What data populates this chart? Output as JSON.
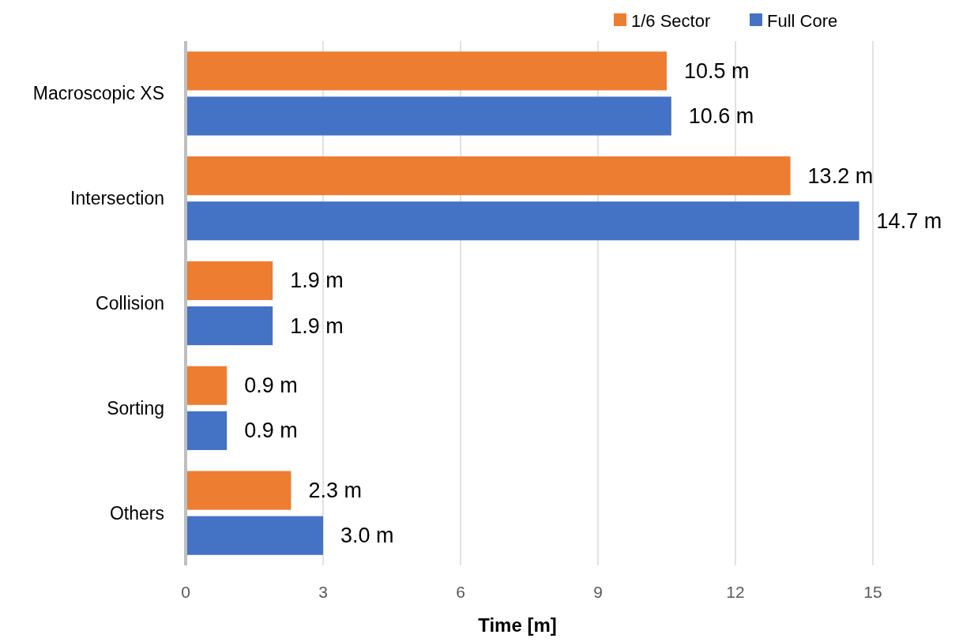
{
  "chart_data": {
    "type": "bar",
    "orientation": "horizontal",
    "xlabel": "Time [m]",
    "categories": [
      "Macroscopic XS",
      "Intersection",
      "Collision",
      "Sorting",
      "Others"
    ],
    "series": [
      {
        "name": "1/6 Sector",
        "color": "#ed7d31",
        "values": [
          10.5,
          13.2,
          1.9,
          0.9,
          2.3
        ],
        "value_labels": [
          "10.5 m",
          "13.2 m",
          "1.9 m",
          "0.9 m",
          "2.3 m"
        ]
      },
      {
        "name": "Full Core",
        "color": "#4472c4",
        "values": [
          10.6,
          14.7,
          1.9,
          0.9,
          3.0
        ],
        "value_labels": [
          "10.6 m",
          "14.7 m",
          "1.9 m",
          "0.9 m",
          "3.0 m"
        ]
      }
    ],
    "xlim": [
      0,
      15
    ],
    "xticks": [
      0,
      3,
      6,
      9,
      12,
      15
    ],
    "grid": "x",
    "legend": "top right"
  }
}
